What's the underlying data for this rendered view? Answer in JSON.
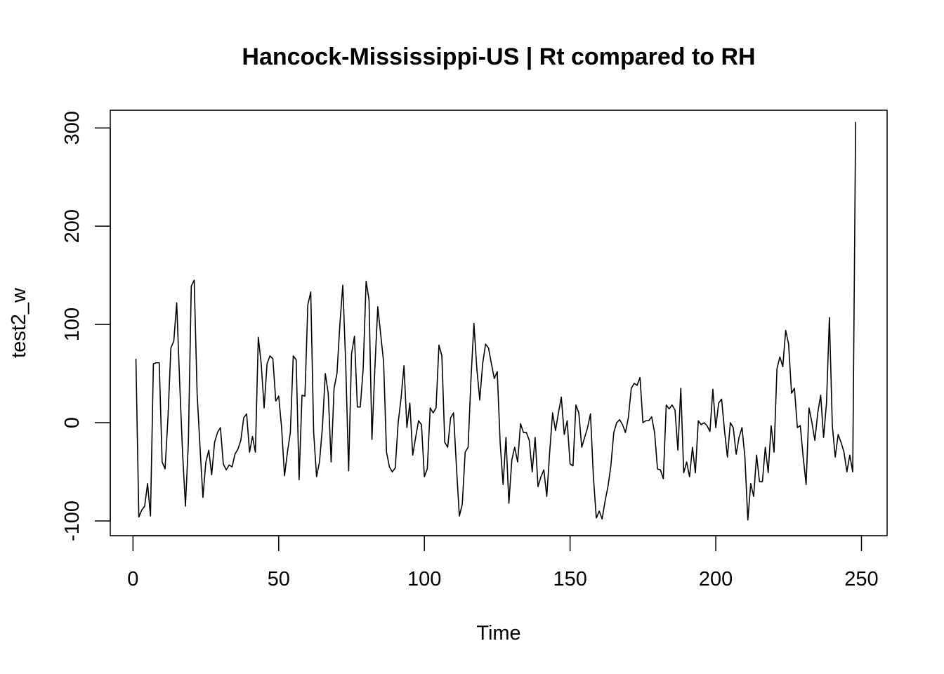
{
  "chart_data": {
    "type": "line",
    "title": "Hancock-Mississippi-US | Rt compared to RH",
    "xlabel": "Time",
    "ylabel": "test2_w",
    "xlim": [
      -7.8,
      258.8
    ],
    "ylim": [
      -115,
      318
    ],
    "x_ticks": [
      0,
      50,
      100,
      150,
      200,
      250
    ],
    "y_ticks": [
      -100,
      0,
      100,
      200,
      300
    ],
    "grid": false,
    "legend": "none",
    "line_color": "#000000",
    "x_start": 1,
    "values": [
      65,
      -96,
      -89,
      -85,
      -62,
      -95,
      60,
      61,
      61,
      -40,
      -47,
      5,
      76,
      83,
      122,
      42,
      -30,
      -85,
      -20,
      139,
      145,
      30,
      -25,
      -76,
      -40,
      -28,
      -53,
      -20,
      -10,
      -5,
      -42,
      -48,
      -43,
      -45,
      -32,
      -27,
      -18,
      5,
      9,
      -30,
      -14,
      -30,
      87,
      60,
      15,
      60,
      68,
      65,
      22,
      27,
      -5,
      -54,
      -30,
      -10,
      68,
      64,
      -58,
      28,
      27,
      120,
      133,
      -10,
      -55,
      -40,
      -5,
      50,
      30,
      -40,
      35,
      50,
      100,
      140,
      60,
      -49,
      70,
      88,
      16,
      16,
      55,
      144,
      125,
      -17,
      55,
      118,
      90,
      62,
      -30,
      -45,
      -50,
      -46,
      0,
      25,
      58,
      -5,
      20,
      -33,
      -15,
      2,
      -2,
      -55,
      -47,
      15,
      10,
      15,
      79,
      68,
      -20,
      -25,
      5,
      10,
      -45,
      -95,
      -83,
      -30,
      -25,
      45,
      101,
      55,
      23,
      60,
      80,
      76,
      60,
      45,
      52,
      -20,
      -63,
      -15,
      -82,
      -38,
      -25,
      -40,
      -1,
      -10,
      -10,
      -18,
      -50,
      -15,
      -65,
      -55,
      -48,
      -75,
      -30,
      10,
      -8,
      10,
      26,
      -12,
      2,
      -42,
      -44,
      18,
      10,
      -25,
      -15,
      -5,
      9,
      -55,
      -97,
      -90,
      -98,
      -80,
      -65,
      -44,
      -10,
      0,
      3,
      -2,
      -10,
      5,
      35,
      40,
      38,
      46,
      0,
      2,
      2,
      6,
      -10,
      -47,
      -48,
      -57,
      18,
      14,
      18,
      13,
      -28,
      35,
      -51,
      -40,
      -55,
      -25,
      -51,
      2,
      -2,
      0,
      -3,
      -9,
      34,
      -5,
      20,
      24,
      -8,
      -35,
      0,
      -5,
      -32,
      -15,
      -5,
      -35,
      -99,
      -62,
      -75,
      -33,
      -60,
      -60,
      -25,
      -51,
      -3,
      -30,
      55,
      67,
      57,
      94,
      80,
      30,
      35,
      -5,
      -3,
      -35,
      -63,
      15,
      0,
      -18,
      10,
      28,
      -15,
      20,
      107,
      -3,
      -35,
      -12,
      -20,
      -30,
      -50,
      -33,
      -50,
      306
    ]
  }
}
